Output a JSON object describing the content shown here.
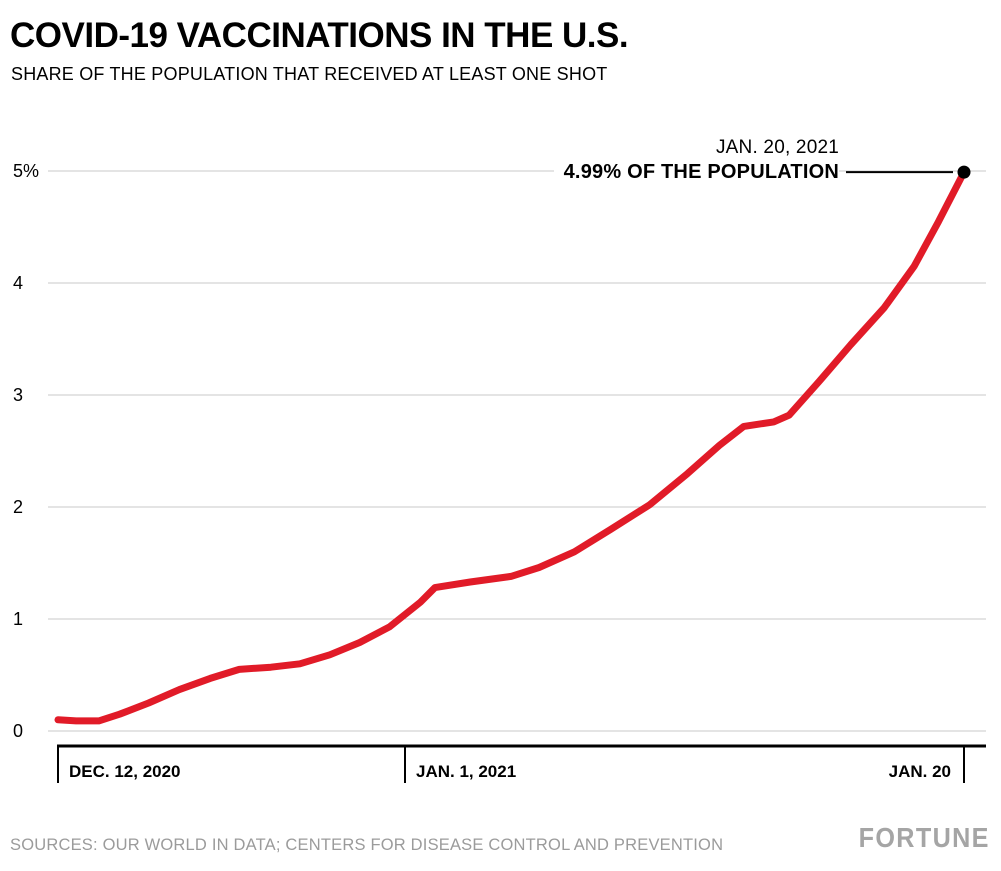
{
  "header": {
    "title": "COVID-19 VACCINATIONS IN THE U.S.",
    "subtitle": "SHARE OF THE POPULATION THAT RECEIVED AT LEAST ONE SHOT"
  },
  "annotation": {
    "date_line": "JAN. 20, 2021",
    "value_line": "4.99% OF THE POPULATION"
  },
  "footer": {
    "sources": "SOURCES: OUR WORLD IN DATA; CENTERS FOR DISEASE CONTROL AND PREVENTION",
    "brand": "FORTUNE"
  },
  "colors": {
    "line": "#e11b28",
    "grid": "#c9c9c9",
    "axis": "#000000",
    "marker": "#000000",
    "muted_text": "#9b9b9b",
    "brand_gray": "#a5a5a5"
  },
  "chart_data": {
    "type": "line",
    "title": "COVID-19 VACCINATIONS IN THE U.S.",
    "subtitle": "SHARE OF THE POPULATION THAT RECEIVED AT LEAST ONE SHOT",
    "unit": "%",
    "ylim": [
      0,
      5
    ],
    "grid": true,
    "y_ticks": [
      {
        "value": 0,
        "label": "0"
      },
      {
        "value": 1,
        "label": "1"
      },
      {
        "value": 2,
        "label": "2"
      },
      {
        "value": 3,
        "label": "3"
      },
      {
        "value": 4,
        "label": "4"
      },
      {
        "value": 5,
        "label": "5%"
      }
    ],
    "x_ticks": [
      {
        "fraction": 0.0,
        "label": "DEC. 12, 2020",
        "align": "left"
      },
      {
        "fraction": 0.383,
        "label": "JAN. 1, 2021",
        "align": "left"
      },
      {
        "fraction": 1.0,
        "label": "JAN. 20",
        "align": "right"
      }
    ],
    "series": [
      {
        "name": "Share of U.S. population that received at least one shot (%)",
        "color": "#e11b28",
        "points": [
          [
            0.0,
            0.1
          ],
          [
            0.02,
            0.09
          ],
          [
            0.045,
            0.09
          ],
          [
            0.068,
            0.15
          ],
          [
            0.1,
            0.25
          ],
          [
            0.134,
            0.37
          ],
          [
            0.168,
            0.47
          ],
          [
            0.2,
            0.55
          ],
          [
            0.235,
            0.57
          ],
          [
            0.267,
            0.6
          ],
          [
            0.3,
            0.68
          ],
          [
            0.333,
            0.79
          ],
          [
            0.366,
            0.93
          ],
          [
            0.4,
            1.15
          ],
          [
            0.416,
            1.28
          ],
          [
            0.455,
            1.33
          ],
          [
            0.5,
            1.38
          ],
          [
            0.531,
            1.46
          ],
          [
            0.57,
            1.6
          ],
          [
            0.61,
            1.8
          ],
          [
            0.653,
            2.02
          ],
          [
            0.695,
            2.3
          ],
          [
            0.73,
            2.55
          ],
          [
            0.757,
            2.72
          ],
          [
            0.79,
            2.76
          ],
          [
            0.807,
            2.82
          ],
          [
            0.84,
            3.12
          ],
          [
            0.875,
            3.45
          ],
          [
            0.912,
            3.78
          ],
          [
            0.945,
            4.15
          ],
          [
            0.972,
            4.55
          ],
          [
            1.0,
            4.99
          ]
        ]
      }
    ],
    "end_point": {
      "date": "JAN. 20, 2021",
      "value": 4.99,
      "label": "4.99% OF THE POPULATION"
    }
  }
}
